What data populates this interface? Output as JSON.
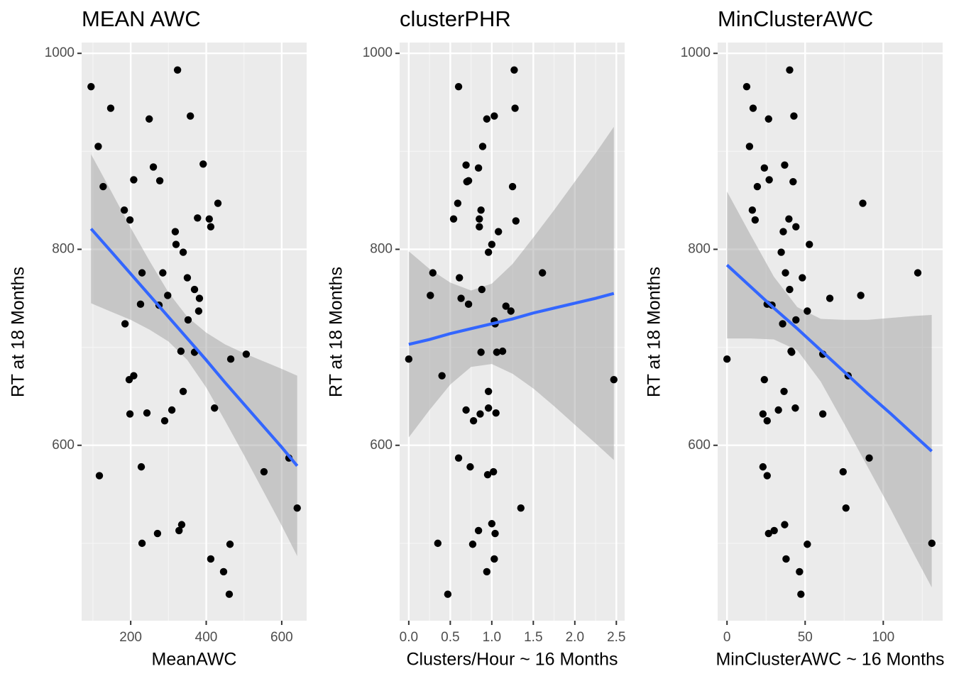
{
  "chart_data": [
    {
      "type": "scatter",
      "title": "MEAN AWC",
      "x_label": "MeanAWC",
      "y_label": "RT at 18 Months",
      "xlim": [
        70,
        666
      ],
      "ylim": [
        421,
        1011
      ],
      "xticks": [
        200,
        400,
        600
      ],
      "minor_xticks": [
        100,
        300,
        500
      ],
      "yticks": [
        600,
        800,
        1000
      ],
      "minor_yticks": [
        500,
        700,
        900
      ],
      "grid": true,
      "point_color": "#000000",
      "x": [
        95,
        114,
        147,
        127,
        117,
        183,
        198,
        208,
        230,
        226,
        185,
        196,
        208,
        198,
        228,
        230,
        243,
        249,
        260,
        277,
        285,
        298,
        275,
        271,
        290,
        309,
        324,
        318,
        320,
        339,
        335,
        328,
        333,
        339,
        358,
        350,
        352,
        369,
        377,
        380,
        382,
        392,
        369,
        408,
        412,
        431,
        422,
        412,
        446,
        461,
        463,
        465,
        506,
        553,
        619,
        641
      ],
      "values": [
        966,
        905,
        944,
        864,
        569,
        840,
        830,
        871,
        776,
        744,
        724,
        667,
        671,
        632,
        578,
        500,
        633,
        933,
        884,
        870,
        776,
        753,
        743,
        510,
        625,
        636,
        983,
        818,
        805,
        797,
        519,
        513,
        696,
        655,
        936,
        771,
        728,
        759,
        832,
        737,
        750,
        887,
        695,
        831,
        823,
        847,
        638,
        484,
        471,
        448,
        499,
        688,
        693,
        573,
        587,
        536
      ],
      "fit": {
        "color": "#3366ff",
        "band_color": "#999999",
        "x": [
          95,
          150,
          200,
          250,
          300,
          350,
          400,
          450,
          500,
          550,
          600,
          641
        ],
        "values": [
          821,
          797,
          775,
          753,
          731,
          709,
          687,
          664,
          642,
          620,
          598,
          579
        ],
        "lower": [
          745,
          736,
          728,
          718,
          706,
          687,
          659,
          625,
          590,
          554,
          518,
          487
        ],
        "upper": [
          897,
          858,
          822,
          788,
          756,
          731,
          715,
          703,
          694,
          686,
          678,
          671
        ]
      }
    },
    {
      "type": "scatter",
      "title": "clusterPHR",
      "x_label": "Clusters/Hour ~ 16 Months",
      "y_label": "RT at 18 Months",
      "xlim": [
        -0.11,
        2.6
      ],
      "ylim": [
        421,
        1011
      ],
      "xticks": [
        {
          "value": 0,
          "label": "0.0"
        },
        0.5,
        {
          "value": 1,
          "label": "1.0"
        },
        1.5,
        {
          "value": 2,
          "label": "2.0"
        },
        2.5
      ],
      "minor_xticks": [
        0.25,
        0.75,
        1.25,
        1.75,
        2.25
      ],
      "yticks": [
        600,
        800,
        1000
      ],
      "minor_yticks": [
        500,
        700,
        900
      ],
      "grid": true,
      "point_color": "#000000",
      "x": [
        0.0,
        0.29,
        0.26,
        0.4,
        0.35,
        0.47,
        0.6,
        0.59,
        0.54,
        0.61,
        0.63,
        0.72,
        0.69,
        0.6,
        0.74,
        0.78,
        0.77,
        0.84,
        0.87,
        0.86,
        0.85,
        0.85,
        0.87,
        0.84,
        0.89,
        0.69,
        0.72,
        0.7,
        0.88,
        0.94,
        1.03,
        0.96,
        0.96,
        0.95,
        1.02,
        0.94,
        1.0,
        1.04,
        1.03,
        1.05,
        0.96,
        1.0,
        1.03,
        1.04,
        1.06,
        1.13,
        1.08,
        1.17,
        1.23,
        1.27,
        1.28,
        1.25,
        1.29,
        1.35,
        1.61,
        2.47
      ],
      "values": [
        688,
        776,
        753,
        671,
        500,
        448,
        966,
        847,
        831,
        771,
        750,
        744,
        636,
        587,
        578,
        625,
        499,
        513,
        695,
        632,
        831,
        823,
        840,
        883,
        905,
        886,
        870,
        869,
        759,
        933,
        936,
        655,
        638,
        570,
        573,
        471,
        520,
        510,
        484,
        633,
        797,
        805,
        727,
        724,
        695,
        696,
        818,
        742,
        737,
        983,
        944,
        864,
        829,
        536,
        776,
        667
      ],
      "fit": {
        "color": "#3366ff",
        "band_color": "#999999",
        "x": [
          0,
          0.25,
          0.5,
          0.75,
          1.0,
          1.25,
          1.5,
          1.75,
          2.0,
          2.25,
          2.47
        ],
        "values": [
          703,
          708,
          714,
          719,
          724,
          729,
          735,
          740,
          745,
          750,
          755
        ],
        "lower": [
          608,
          636,
          662,
          680,
          683,
          673,
          658,
          640,
          621,
          602,
          585
        ],
        "upper": [
          798,
          780,
          766,
          758,
          765,
          785,
          812,
          840,
          869,
          898,
          925
        ]
      }
    },
    {
      "type": "scatter",
      "title": "MinClusterAWC",
      "x_label": "MinClusterAWC ~ 16 Months",
      "y_label": "RT at 18 Months",
      "xlim": [
        -6,
        138
      ],
      "ylim": [
        421,
        1011
      ],
      "xticks": [
        0,
        50,
        100
      ],
      "minor_xticks": [
        25,
        75,
        125
      ],
      "yticks": [
        600,
        800,
        1000
      ],
      "minor_yticks": [
        500,
        700,
        900
      ],
      "grid": true,
      "point_color": "#000000",
      "x": [
        0,
        12.6,
        14.4,
        16.7,
        19.4,
        16.2,
        18.0,
        23.9,
        27.0,
        26.6,
        25.7,
        28.8,
        23.0,
        25.7,
        23.9,
        23.0,
        25.7,
        26.6,
        30.2,
        32.9,
        34.7,
        36.0,
        36.9,
        37.4,
        35.6,
        36.5,
        36.9,
        37.8,
        40.1,
        39.6,
        40.1,
        41.4,
        41.0,
        42.8,
        42.3,
        44.1,
        43.7,
        44.1,
        46.4,
        47.3,
        48.2,
        51.4,
        51.4,
        52.7,
        61.3,
        61.3,
        65.8,
        74.3,
        76.1,
        77.5,
        85.6,
        86.9,
        91.0,
        122.1,
        131.1
      ],
      "values": [
        688,
        966,
        905,
        944,
        864,
        840,
        830,
        883,
        871,
        933,
        744,
        743,
        578,
        569,
        667,
        632,
        625,
        510,
        513,
        636,
        797,
        818,
        886,
        776,
        724,
        655,
        519,
        484,
        983,
        831,
        759,
        695,
        696,
        936,
        869,
        823,
        638,
        728,
        471,
        448,
        771,
        737,
        499,
        805,
        693,
        632,
        750,
        573,
        536,
        671,
        753,
        847,
        587,
        776,
        500
      ],
      "fit": {
        "color": "#3366ff",
        "band_color": "#999999",
        "x": [
          0,
          15,
          30,
          45,
          60,
          75,
          90,
          105,
          120,
          131
        ],
        "values": [
          784,
          762,
          740,
          719,
          697,
          675,
          653,
          632,
          610,
          594
        ],
        "lower": [
          709,
          709,
          708,
          697,
          665,
          622,
          578,
          534,
          488,
          455
        ],
        "upper": [
          859,
          815,
          772,
          741,
          729,
          728,
          728,
          730,
          732,
          733
        ]
      }
    }
  ]
}
